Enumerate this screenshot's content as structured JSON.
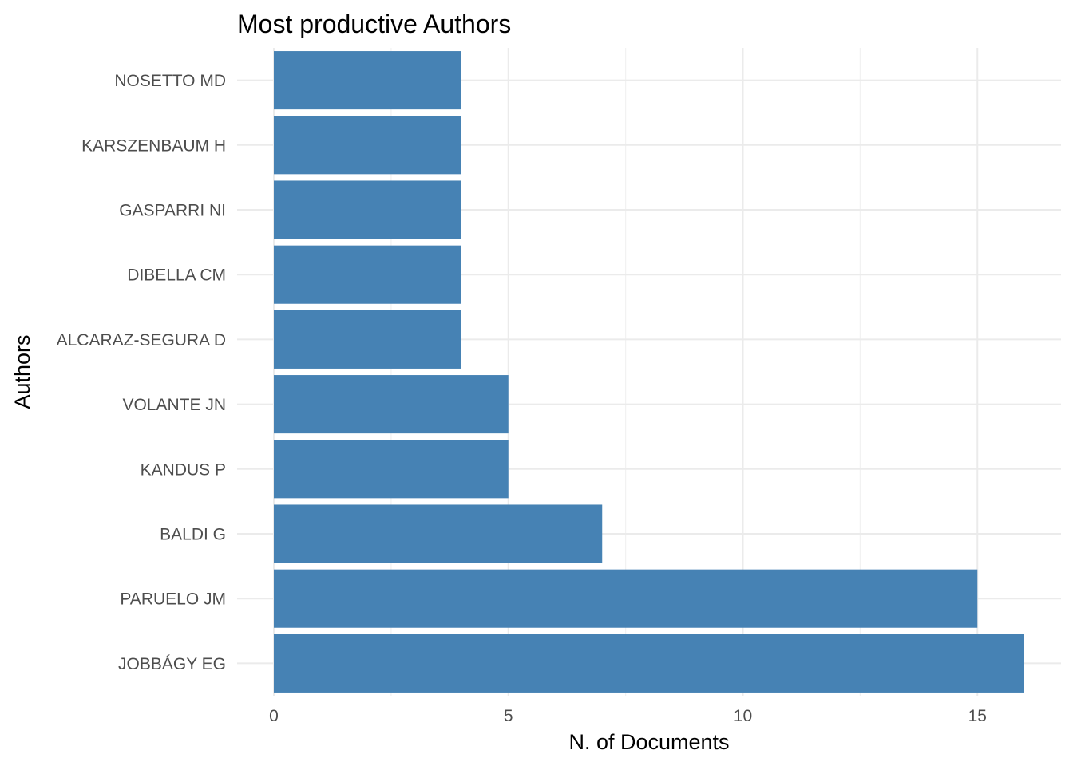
{
  "chart_data": {
    "type": "bar",
    "orientation": "horizontal",
    "title": "Most productive Authors",
    "xlabel": "N. of Documents",
    "ylabel": "Authors",
    "categories": [
      "JOBBÁGY EG",
      "PARUELO JM",
      "BALDI G",
      "KANDUS P",
      "VOLANTE JN",
      "ALCARAZ-SEGURA D",
      "DIBELLA CM",
      "GASPARRI NI",
      "KARSZENBAUM H",
      "NOSETTO MD"
    ],
    "values": [
      16,
      15,
      7,
      5,
      5,
      4,
      4,
      4,
      4,
      4
    ],
    "xlim": [
      0,
      16.8
    ],
    "xticks": [
      0,
      5,
      10,
      15
    ],
    "bar_color": "#4682B4",
    "grid": true,
    "legend": "none"
  }
}
